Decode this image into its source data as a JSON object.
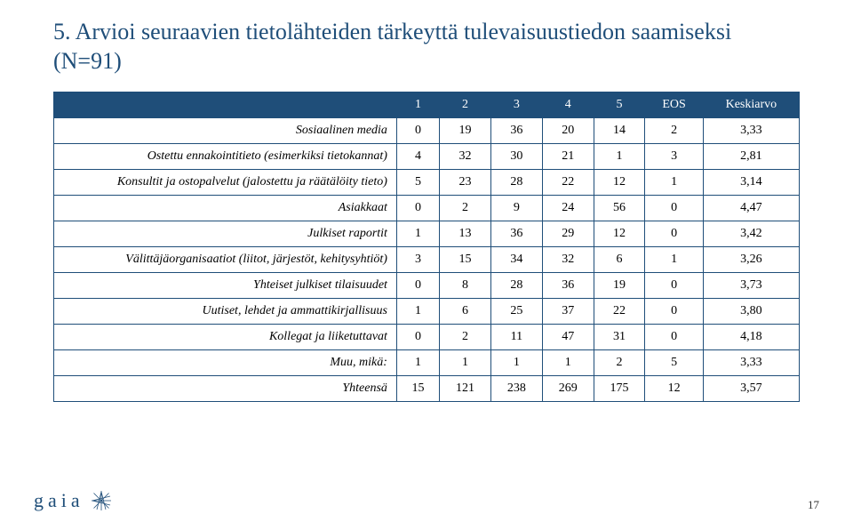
{
  "title": "5. Arvioi seuraavien tietolähteiden tärkeyttä tulevaisuustiedon saamiseksi (N=91)",
  "table": {
    "columns": [
      "",
      "1",
      "2",
      "3",
      "4",
      "5",
      "EOS",
      "Keskiarvo"
    ],
    "rows": [
      {
        "label": "Sosiaalinen media",
        "cells": [
          "0",
          "19",
          "36",
          "20",
          "14",
          "2",
          "3,33"
        ]
      },
      {
        "label": "Ostettu ennakointitieto (esimerkiksi tietokannat)",
        "cells": [
          "4",
          "32",
          "30",
          "21",
          "1",
          "3",
          "2,81"
        ]
      },
      {
        "label": "Konsultit ja ostopalvelut (jalostettu ja räätälöity tieto)",
        "cells": [
          "5",
          "23",
          "28",
          "22",
          "12",
          "1",
          "3,14"
        ]
      },
      {
        "label": "Asiakkaat",
        "cells": [
          "0",
          "2",
          "9",
          "24",
          "56",
          "0",
          "4,47"
        ]
      },
      {
        "label": "Julkiset raportit",
        "cells": [
          "1",
          "13",
          "36",
          "29",
          "12",
          "0",
          "3,42"
        ]
      },
      {
        "label": "Välittäjäorganisaatiot (liitot, järjestöt, kehitysyhtiöt)",
        "cells": [
          "3",
          "15",
          "34",
          "32",
          "6",
          "1",
          "3,26"
        ]
      },
      {
        "label": "Yhteiset julkiset tilaisuudet",
        "cells": [
          "0",
          "8",
          "28",
          "36",
          "19",
          "0",
          "3,73"
        ]
      },
      {
        "label": "Uutiset, lehdet ja ammattikirjallisuus",
        "cells": [
          "1",
          "6",
          "25",
          "37",
          "22",
          "0",
          "3,80"
        ]
      },
      {
        "label": "Kollegat ja liiketuttavat",
        "cells": [
          "0",
          "2",
          "11",
          "47",
          "31",
          "0",
          "4,18"
        ]
      },
      {
        "label": "Muu, mikä:",
        "cells": [
          "1",
          "1",
          "1",
          "1",
          "2",
          "5",
          "3,33"
        ]
      },
      {
        "label": "Yhteensä",
        "cells": [
          "15",
          "121",
          "238",
          "269",
          "175",
          "12",
          "3,57"
        ]
      }
    ]
  },
  "logo_text": "gaia",
  "page_number": "17",
  "colors": {
    "heading": "#1f4e79",
    "header_bg": "#1f4e79",
    "border": "#1f4e79",
    "background": "#ffffff"
  }
}
